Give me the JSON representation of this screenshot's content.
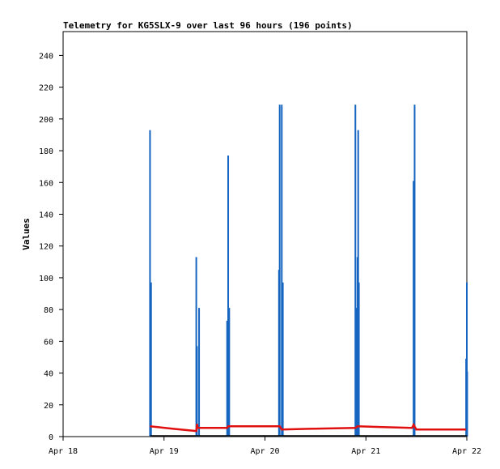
{
  "chart_data": {
    "type": "line",
    "title": "Telemetry for KG5SLX-9 over last 96 hours (196 points)",
    "ylabel": "Values",
    "xlabel": "",
    "ylim": [
      0,
      255
    ],
    "yticks": [
      0,
      20,
      40,
      60,
      80,
      100,
      120,
      140,
      160,
      180,
      200,
      220,
      240
    ],
    "x_ticks": [
      "Apr 18",
      "Apr 19",
      "Apr 20",
      "Apr 21",
      "Apr 22"
    ],
    "grid": false,
    "colors": {
      "spikes": "#1565c0",
      "red_series": "#e01010",
      "black_series": "#000000"
    },
    "series": [
      {
        "color": "#1565c0",
        "style": "spikes",
        "points": [
          [
            "Apr 18 20:40",
            193
          ],
          [
            "Apr 18 20:55",
            97
          ],
          [
            "Apr 19 07:40",
            113
          ],
          [
            "Apr 19 07:50",
            57
          ],
          [
            "Apr 19 08:20",
            81
          ],
          [
            "Apr 19 15:00",
            73
          ],
          [
            "Apr 19 15:15",
            177
          ],
          [
            "Apr 19 15:30",
            81
          ],
          [
            "Apr 20 03:20",
            105
          ],
          [
            "Apr 20 03:30",
            209
          ],
          [
            "Apr 20 04:00",
            209
          ],
          [
            "Apr 20 04:15",
            97
          ],
          [
            "Apr 20 21:30",
            209
          ],
          [
            "Apr 20 21:50",
            81
          ],
          [
            "Apr 20 22:00",
            113
          ],
          [
            "Apr 20 22:10",
            193
          ],
          [
            "Apr 20 22:20",
            97
          ],
          [
            "Apr 21 11:20",
            161
          ],
          [
            "Apr 21 11:35",
            209
          ],
          [
            "Apr 21 23:50",
            49
          ],
          [
            "Apr 22 00:00",
            97
          ],
          [
            "Apr 22 00:05",
            41
          ]
        ]
      },
      {
        "color": "#e01010",
        "style": "line",
        "points": [
          [
            "Apr 18 20:40",
            6.5
          ],
          [
            "Apr 19 02:00",
            5.0
          ],
          [
            "Apr 19 07:40",
            3.5
          ],
          [
            "Apr 19 07:50",
            8.0
          ],
          [
            "Apr 19 08:00",
            5.5
          ],
          [
            "Apr 19 15:00",
            5.5
          ],
          [
            "Apr 19 15:15",
            6.5
          ],
          [
            "Apr 20 03:30",
            6.5
          ],
          [
            "Apr 20 04:00",
            4.5
          ],
          [
            "Apr 20 12:00",
            5.0
          ],
          [
            "Apr 20 21:30",
            5.5
          ],
          [
            "Apr 20 22:00",
            6.5
          ],
          [
            "Apr 21 04:00",
            6.0
          ],
          [
            "Apr 21 11:00",
            5.5
          ],
          [
            "Apr 21 11:20",
            7.5
          ],
          [
            "Apr 21 12:00",
            4.5
          ],
          [
            "Apr 21 23:50",
            4.5
          ]
        ]
      },
      {
        "color": "#000000",
        "style": "line",
        "points": [
          [
            "Apr 18 20:40",
            0.5
          ],
          [
            "Apr 22 00:05",
            0.5
          ]
        ]
      }
    ]
  }
}
